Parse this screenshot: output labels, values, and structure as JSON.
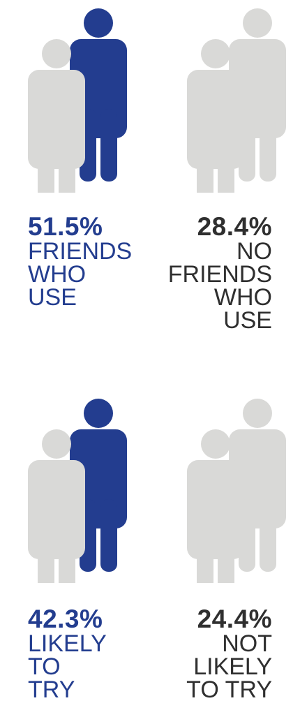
{
  "colors": {
    "accent": "#233d8f",
    "figure_gray": "#d9d9d7",
    "text_dark": "#2f2f2f"
  },
  "chart_data": [
    {
      "type": "pictograph",
      "series": [
        {
          "value": 51.5,
          "value_label": "51.5%",
          "label_lines": [
            "FRIENDS",
            "WHO",
            "USE"
          ],
          "highlight": true
        },
        {
          "value": 28.4,
          "value_label": "28.4%",
          "label_lines": [
            "NO",
            "FRIENDS",
            "WHO",
            "USE"
          ],
          "highlight": false
        }
      ]
    },
    {
      "type": "pictograph",
      "series": [
        {
          "value": 42.3,
          "value_label": "42.3%",
          "label_lines": [
            "LIKELY",
            "TO",
            "TRY"
          ],
          "highlight": true
        },
        {
          "value": 24.4,
          "value_label": "24.4%",
          "label_lines": [
            "NOT",
            "LIKELY",
            "TO TRY"
          ],
          "highlight": false
        }
      ]
    }
  ]
}
